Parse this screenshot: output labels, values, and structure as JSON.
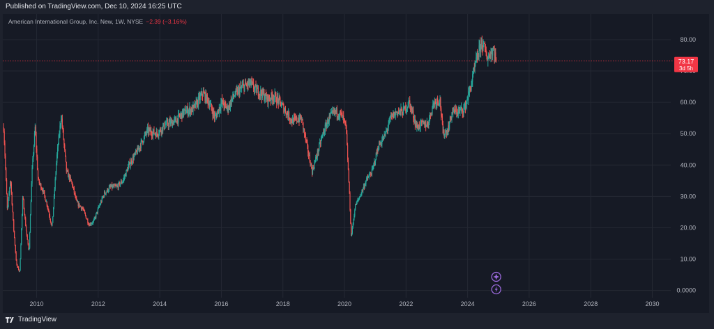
{
  "header": {
    "published": "Published on TradingView.com, Dec 10, 2024 16:25 UTC"
  },
  "legend": {
    "symbol": "American International Group, Inc. New, 1W, NYSE",
    "change": "−2.39 (−3.16%)"
  },
  "footer": {
    "brand": "TradingView"
  },
  "colors": {
    "up": "#26a69a",
    "down": "#ef5350",
    "background": "#161a25",
    "grid": "#242833",
    "axis_text": "#b2b5be",
    "price_label": "#f23645",
    "event_icon": "#9c6ade"
  },
  "icons": [
    "star-event-icon",
    "lightning-event-icon",
    "tradingview-logo-icon"
  ],
  "chart_data": {
    "type": "candlestick",
    "title": "",
    "xlabel": "",
    "ylabel": "",
    "x_ticks": [
      "2010",
      "2012",
      "2014",
      "2016",
      "2018",
      "2020",
      "2022",
      "2024",
      "2026",
      "2028",
      "2030"
    ],
    "y_ticks": [
      "0.0000",
      "10.00",
      "20.00",
      "30.00",
      "40.00",
      "50.00",
      "60.00",
      "70.00",
      "80.00"
    ],
    "xlim": [
      2008.9,
      2030.6
    ],
    "ylim": [
      -2.3,
      88.2
    ],
    "last_price": {
      "value": 73.17,
      "label": "73.17",
      "countdown": "3d 5h"
    },
    "grid": true,
    "close_series": {
      "x": [
        2008.93,
        2009.05,
        2009.15,
        2009.25,
        2009.35,
        2009.45,
        2009.55,
        2009.65,
        2009.75,
        2009.85,
        2009.95,
        2010.05,
        2010.2,
        2010.35,
        2010.5,
        2010.65,
        2010.8,
        2010.97,
        2011.15,
        2011.3,
        2011.5,
        2011.7,
        2011.85,
        2012.0,
        2012.2,
        2012.4,
        2012.6,
        2012.8,
        2013.0,
        2013.3,
        2013.6,
        2013.9,
        2014.2,
        2014.5,
        2014.8,
        2015.1,
        2015.4,
        2015.6,
        2015.8,
        2016.0,
        2016.2,
        2016.4,
        2016.7,
        2016.95,
        2017.1,
        2017.3,
        2017.5,
        2017.7,
        2017.9,
        2018.1,
        2018.3,
        2018.6,
        2018.8,
        2018.95,
        2019.1,
        2019.3,
        2019.5,
        2019.7,
        2019.9,
        2020.05,
        2020.15,
        2020.22,
        2020.35,
        2020.5,
        2020.7,
        2020.9,
        2021.1,
        2021.3,
        2021.5,
        2021.7,
        2021.9,
        2022.1,
        2022.2,
        2022.35,
        2022.5,
        2022.7,
        2022.9,
        2023.1,
        2023.2,
        2023.35,
        2023.5,
        2023.7,
        2023.9,
        2024.1,
        2024.3,
        2024.45,
        2024.55,
        2024.65,
        2024.75,
        2024.85,
        2024.93
      ],
      "close": [
        52,
        25,
        36,
        20,
        8,
        6,
        30,
        20,
        12,
        38,
        52,
        35,
        32,
        27,
        20,
        42,
        56,
        38,
        34,
        28,
        26,
        21,
        22,
        26,
        31,
        33,
        33,
        35,
        40,
        45,
        51,
        50,
        53,
        54,
        57,
        58,
        63,
        60,
        55,
        60,
        58,
        62,
        65,
        66,
        64,
        63,
        61,
        62,
        60,
        57,
        54,
        55,
        45,
        38,
        43,
        50,
        55,
        57,
        56,
        52,
        33,
        17,
        27,
        30,
        35,
        38,
        46,
        49,
        55,
        57,
        57,
        60,
        57,
        52,
        53,
        53,
        60,
        61,
        50,
        51,
        57,
        57,
        58,
        65,
        74,
        79,
        77,
        74,
        76,
        77,
        73.17
      ]
    }
  }
}
